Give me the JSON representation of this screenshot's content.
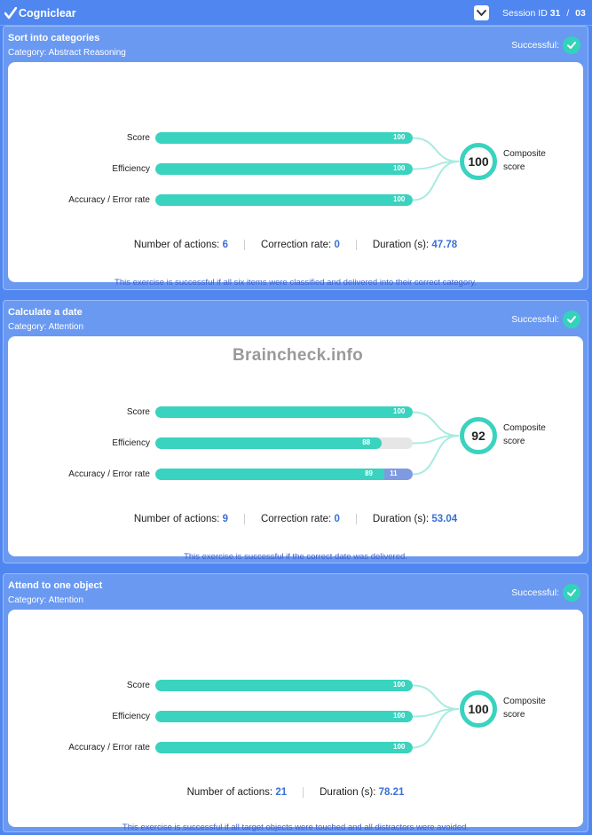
{
  "header": {
    "brand": "Cogniclear",
    "session_label": "Session ID",
    "session_id": "31",
    "separator": "/",
    "session_total": "03"
  },
  "watermark": "Braincheck.info",
  "panels": [
    {
      "title": "Sort into categories",
      "category": "Category: Abstract Reasoning",
      "status": "Successful:",
      "metrics": [
        {
          "label": "Score",
          "value": 100
        },
        {
          "label": "Efficiency",
          "value": 100
        },
        {
          "label": "Accuracy / Error rate",
          "value": 100
        }
      ],
      "composite": "100",
      "composite_label_1": "Composite",
      "composite_label_2": "score",
      "stats": [
        {
          "label": "Number of actions:",
          "value": "6"
        },
        {
          "label": "Correction rate:",
          "value": "0"
        },
        {
          "label": "Duration (s):",
          "value": "47.78"
        }
      ],
      "note": "This exercise is successful if all six items were classified and delivered into their correct category."
    },
    {
      "title": "Calculate a date",
      "category": "Category: Attention",
      "status": "Successful:",
      "metrics": [
        {
          "label": "Score",
          "value": 100
        },
        {
          "label": "Efficiency",
          "value": 88
        },
        {
          "label": "Accuracy / Error rate",
          "value": 89,
          "error": 11
        }
      ],
      "composite": "92",
      "composite_label_1": "Composite",
      "composite_label_2": "score",
      "stats": [
        {
          "label": "Number of actions:",
          "value": "9"
        },
        {
          "label": "Correction rate:",
          "value": "0"
        },
        {
          "label": "Duration (s):",
          "value": "53.04"
        }
      ],
      "note": "This exercise is successful if the correct date was delivered."
    },
    {
      "title": "Attend to one object",
      "category": "Category: Attention",
      "status": "Successful:",
      "metrics": [
        {
          "label": "Score",
          "value": 100
        },
        {
          "label": "Efficiency",
          "value": 100
        },
        {
          "label": "Accuracy / Error rate",
          "value": 100
        }
      ],
      "composite": "100",
      "composite_label_1": "Composite",
      "composite_label_2": "score",
      "stats": [
        {
          "label": "Number of actions:",
          "value": "21"
        },
        {
          "label": "Duration (s):",
          "value": "78.21"
        }
      ],
      "note": "This exercise is successful if all target objects were touched and all distractors were avoided."
    }
  ],
  "colors": {
    "background": "#4f86ef",
    "panel": "#6a99f1",
    "bar_fill": "#39d3bf",
    "bar_error": "#7f9ae1",
    "bar_track": "#e6e6e6",
    "stat_value": "#3a6fd6",
    "note": "#3a5fc8"
  }
}
